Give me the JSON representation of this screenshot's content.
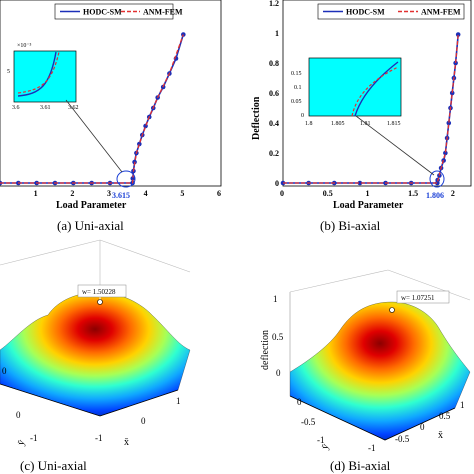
{
  "colors": {
    "sm": "#1c2fb8",
    "fem": "#e23030",
    "inset_bg": "#00ffff",
    "highlight": "#1a3fd6"
  },
  "captions": {
    "a": "(a)  Uni-axial",
    "b": "(b)  Bi-axial",
    "c": "(c)  Uni-axial",
    "d": "(d)  Bi-axial"
  },
  "chart_data": [
    {
      "id": "a",
      "type": "line",
      "xlabel": "Load Parameter",
      "ylabel": "",
      "xlim": [
        0,
        6
      ],
      "ylim": [
        0,
        1.2
      ],
      "xticks": [
        "1",
        "2",
        "3",
        "4",
        "5",
        "6"
      ],
      "yticks": [],
      "legend": {
        "placement": "top",
        "entries": [
          "HODC-SM",
          "ANM-FEM"
        ]
      },
      "critical_load_label": "3.615",
      "series": [
        {
          "name": "HODC-SM",
          "style": "solid-markers",
          "x": [
            0,
            0.5,
            1.0,
            1.5,
            2.0,
            2.5,
            3.0,
            3.615,
            3.62,
            3.64,
            3.67,
            3.72,
            3.8,
            3.88,
            3.97,
            4.07,
            4.18,
            4.3,
            4.45,
            4.62,
            4.8,
            5.0
          ],
          "y": [
            0,
            0,
            0,
            0,
            0,
            0,
            0,
            0,
            0.03,
            0.08,
            0.14,
            0.2,
            0.26,
            0.32,
            0.38,
            0.44,
            0.5,
            0.57,
            0.64,
            0.73,
            0.83,
            0.99
          ]
        },
        {
          "name": "ANM-FEM",
          "style": "dashed",
          "x": [
            0,
            3.615,
            3.64,
            3.72,
            3.88,
            4.07,
            4.3,
            4.62,
            5.0
          ],
          "y": [
            0,
            0,
            0.08,
            0.2,
            0.32,
            0.44,
            0.57,
            0.73,
            0.99
          ]
        }
      ],
      "inset": {
        "xlim": [
          3.6,
          3.62
        ],
        "xticks": [
          "3.6",
          "3.61",
          "3.62"
        ],
        "exponent_label": "×10⁻³",
        "yticks": [
          "5"
        ]
      }
    },
    {
      "id": "b",
      "type": "line",
      "xlabel": "Load Parameter",
      "ylabel": "Deflection",
      "xlim": [
        0,
        2.2
      ],
      "ylim": [
        0,
        1.2
      ],
      "xticks": [
        "0",
        "0.5",
        "1",
        "1.5",
        "2"
      ],
      "yticks": [
        "0",
        "0.2",
        "0.4",
        "0.6",
        "0.8",
        "1",
        "1.2"
      ],
      "legend": {
        "placement": "top",
        "entries": [
          "HODC-SM",
          "ANM-FEM"
        ]
      },
      "critical_load_label": "1.806",
      "series": [
        {
          "name": "HODC-SM",
          "style": "solid-markers",
          "x": [
            0,
            0.3,
            0.6,
            0.9,
            1.2,
            1.5,
            1.806,
            1.81,
            1.83,
            1.85,
            1.88,
            1.9,
            1.92,
            1.94,
            1.96,
            1.98,
            2.0,
            2.02,
            2.05
          ],
          "y": [
            0,
            0,
            0,
            0,
            0,
            0,
            0,
            0.02,
            0.05,
            0.1,
            0.15,
            0.2,
            0.3,
            0.4,
            0.5,
            0.6,
            0.7,
            0.8,
            0.99
          ]
        },
        {
          "name": "ANM-FEM",
          "style": "dashed",
          "x": [
            0,
            1.806,
            1.85,
            1.9,
            1.94,
            1.98,
            2.02,
            2.05
          ],
          "y": [
            0,
            0,
            0.1,
            0.2,
            0.4,
            0.6,
            0.8,
            0.99
          ]
        }
      ],
      "inset": {
        "xlim": [
          1.8,
          1.815
        ],
        "xticks": [
          "1.8",
          "1.805",
          "1.81",
          "1.815"
        ],
        "yticks": [
          "0.15",
          "0.1",
          "0.05",
          "0"
        ]
      }
    },
    {
      "id": "c",
      "type": "surface",
      "datatip": "w= 1.50228",
      "zticks": [
        "0"
      ],
      "yticks": [
        "0",
        "-1"
      ],
      "xticks": [
        "-1",
        "0",
        "1"
      ],
      "xlabel": "x̄",
      "ylabel": "ȳ"
    },
    {
      "id": "d",
      "type": "surface",
      "datatip": "w= 1.07251",
      "zlabel": "deflection",
      "zticks": [
        "0",
        "0.5",
        "1"
      ],
      "yticks": [
        "0",
        "-0.5",
        "-1"
      ],
      "xticks": [
        "-1",
        "-0.5",
        "0",
        "0.5",
        "1"
      ],
      "xlabel": "x̄",
      "ylabel": "ȳ"
    }
  ]
}
